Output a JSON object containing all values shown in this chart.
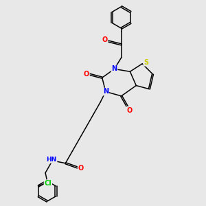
{
  "background_color": "#e8e8e8",
  "figsize": [
    3.0,
    3.0
  ],
  "dpi": 100,
  "bond_color": "#000000",
  "atom_colors": {
    "N": "#0000ff",
    "O": "#ff0000",
    "S": "#cccc00",
    "Cl": "#00cc00",
    "H": "#555555",
    "C": "#000000"
  },
  "font_size_atoms": 7.0,
  "font_size_hn": 6.5,
  "line_width": 1.1
}
